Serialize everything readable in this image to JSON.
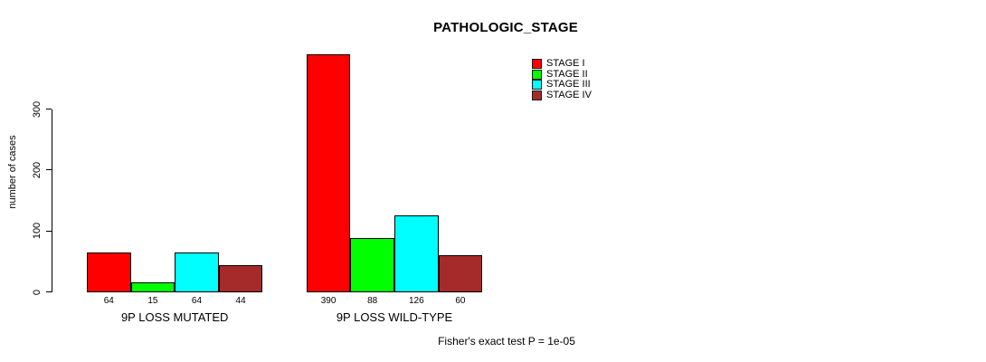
{
  "title": "PATHOLOGIC_STAGE",
  "footer": "Fisher's exact test P = 1e-05",
  "chart_data": {
    "type": "bar",
    "title": "PATHOLOGIC_STAGE",
    "xlabel": "",
    "ylabel": "number of cases",
    "categories": [
      "9P LOSS MUTATED",
      "9P LOSS WILD-TYPE"
    ],
    "series": [
      {
        "name": "STAGE I",
        "color": "#FF0000",
        "values": [
          64,
          390
        ]
      },
      {
        "name": "STAGE II",
        "color": "#00FF00",
        "values": [
          15,
          88
        ]
      },
      {
        "name": "STAGE III",
        "color": "#00FFFF",
        "values": [
          64,
          126
        ]
      },
      {
        "name": "STAGE IV",
        "color": "#A52A2A",
        "values": [
          44,
          60
        ]
      }
    ],
    "bar_value_labels": [
      [
        64,
        15,
        64,
        44
      ],
      [
        390,
        88,
        126,
        60
      ]
    ],
    "yticks": [
      0,
      100,
      200,
      300
    ],
    "ylim": [
      0,
      390
    ],
    "grid": false,
    "legend_position": "top-right",
    "annotation": "Fisher's exact test P = 1e-05",
    "axis_color": "#000000",
    "background_color": "#FFFFFF"
  }
}
